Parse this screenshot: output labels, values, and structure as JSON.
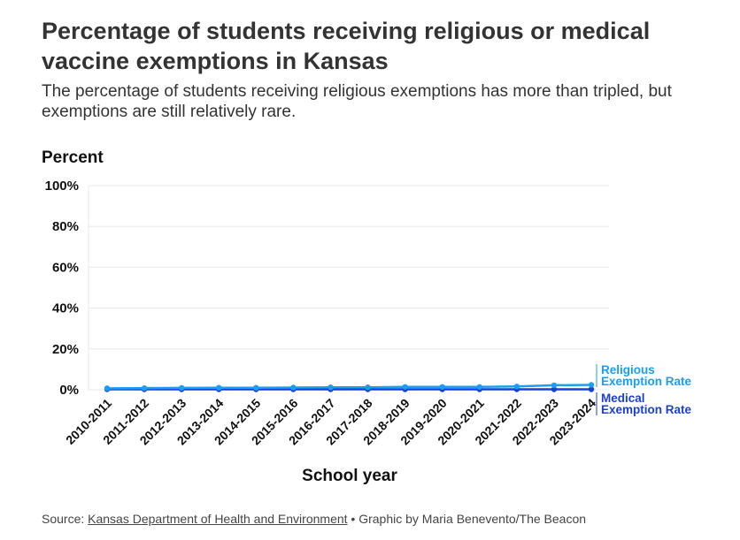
{
  "title": "Percentage of students receiving religious or medical vaccine exemptions in Kansas",
  "subtitle": "The percentage of students receiving religious exemptions has more than tripled, but exemptions are still relatively rare.",
  "source": {
    "prefix": "Source: ",
    "link_text": "Kansas Department of Health and Environment",
    "suffix": " • Graphic by Maria Benevento/The Beacon"
  },
  "colors": {
    "religious": "#1a9df5",
    "medical": "#1a3fd6",
    "grid": "#e8e8e8"
  },
  "chart_data": {
    "type": "line",
    "title": "",
    "ylabel": "Percent",
    "xlabel": "School year",
    "ylim": [
      0,
      100
    ],
    "yticks": [
      0,
      20,
      40,
      60,
      80,
      100
    ],
    "ytick_labels": [
      "0%",
      "20%",
      "40%",
      "60%",
      "80%",
      "100%"
    ],
    "grid": true,
    "categories": [
      "2010-2011",
      "2011-2012",
      "2012-2013",
      "2013-2014",
      "2014-2015",
      "2015-2016",
      "2016-2017",
      "2017-2018",
      "2018-2019",
      "2019-2020",
      "2020-2021",
      "2021-2022",
      "2022-2023",
      "2023-2024"
    ],
    "series": [
      {
        "name": "Religious Exemption Rate",
        "label_lines": [
          "Religious",
          "Exemption Rate"
        ],
        "color_key": "religious",
        "values": [
          0.7,
          0.8,
          0.9,
          1.0,
          1.0,
          1.1,
          1.2,
          1.2,
          1.4,
          1.4,
          1.4,
          1.6,
          2.2,
          2.4
        ]
      },
      {
        "name": "Medical Exemption Rate",
        "label_lines": [
          "Medical",
          "Exemption Rate"
        ],
        "color_key": "medical",
        "values": [
          0.2,
          0.2,
          0.2,
          0.2,
          0.2,
          0.2,
          0.2,
          0.2,
          0.2,
          0.2,
          0.2,
          0.2,
          0.2,
          0.2
        ]
      }
    ]
  }
}
